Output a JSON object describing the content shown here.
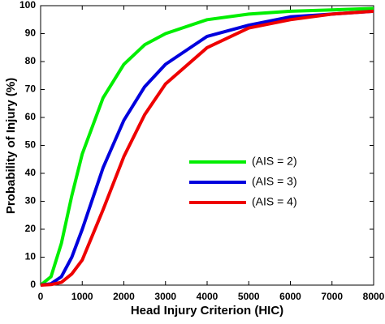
{
  "chart_data": {
    "type": "line",
    "x_label": "Head Injury Criterion (HIC)",
    "y_label": "Probability of Injury (%)",
    "x": [
      0,
      250,
      500,
      750,
      1000,
      1500,
      2000,
      2500,
      3000,
      4000,
      5000,
      6000,
      7000,
      8000
    ],
    "series": [
      {
        "name": "(AIS = 2)",
        "color": "#00ee00",
        "values": [
          0,
          3,
          15,
          32,
          47,
          67,
          79,
          86,
          90,
          95,
          97,
          98,
          98.5,
          99
        ]
      },
      {
        "name": "(AIS = 3)",
        "color": "#0000dd",
        "values": [
          0,
          0.5,
          3,
          10,
          20,
          42,
          59,
          71,
          79,
          89,
          93,
          96,
          97,
          98
        ]
      },
      {
        "name": "(AIS = 4)",
        "color": "#ee0000",
        "values": [
          0,
          0.2,
          1,
          4,
          9,
          27,
          46,
          61,
          72,
          85,
          92,
          95,
          97,
          98
        ]
      }
    ],
    "xlim": [
      0,
      8000
    ],
    "xticks": [
      0,
      1000,
      2000,
      3000,
      4000,
      5000,
      6000,
      7000,
      8000
    ],
    "ylim": [
      0,
      100
    ],
    "yticks": [
      0,
      10,
      20,
      30,
      40,
      50,
      60,
      70,
      80,
      90,
      100
    ]
  }
}
